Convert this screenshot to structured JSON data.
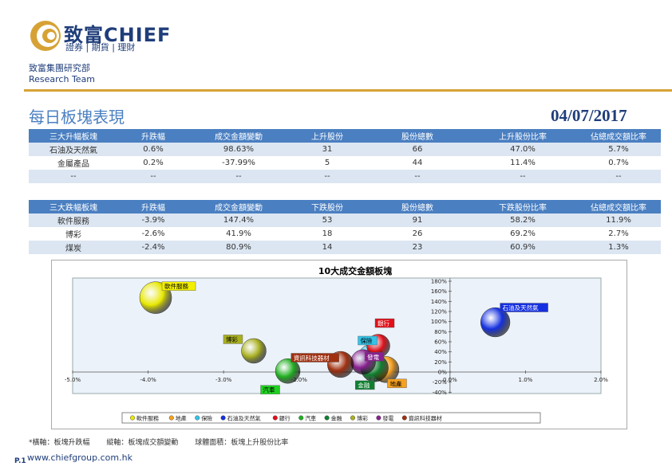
{
  "header": {
    "brand_name": "致富CHIEF",
    "brand_tagline": "證券 | 期貨 | 理財",
    "dept_cn": "致富集團研究部",
    "dept_en": "Research Team"
  },
  "report": {
    "title": "每日板塊表現",
    "date": "04/07/2017"
  },
  "top_gainers": {
    "headers": [
      "三大升幅板塊",
      "升跌幅",
      "成交金額變動",
      "上升股份",
      "股份總數",
      "上升股份比率",
      "佔總成交額比率"
    ],
    "rows": [
      [
        "石油及天然氣",
        "0.6%",
        "98.63%",
        "31",
        "66",
        "47.0%",
        "5.7%"
      ],
      [
        "金屬產品",
        "0.2%",
        "-37.99%",
        "5",
        "44",
        "11.4%",
        "0.7%"
      ],
      [
        "--",
        "--",
        "--",
        "--",
        "--",
        "--",
        "--"
      ]
    ]
  },
  "top_losers": {
    "headers": [
      "三大跌幅板塊",
      "升跌幅",
      "成交金額變動",
      "下跌股份",
      "股份總數",
      "下跌股份比率",
      "佔總成交額比率"
    ],
    "rows": [
      [
        "軟件服務",
        "-3.9%",
        "147.4%",
        "53",
        "91",
        "58.2%",
        "11.9%"
      ],
      [
        "博彩",
        "-2.6%",
        "41.9%",
        "18",
        "26",
        "69.2%",
        "2.7%"
      ],
      [
        "煤炭",
        "-2.4%",
        "80.9%",
        "14",
        "23",
        "60.9%",
        "1.3%"
      ]
    ]
  },
  "chart_data": {
    "type": "scatter",
    "title": "10大成交金額板塊",
    "xlim": [
      -0.05,
      0.02
    ],
    "ylim": [
      -0.4,
      1.8
    ],
    "x_ticks": [
      "-5.0%",
      "-4.0%",
      "-3.0%",
      "-2.0%",
      "-1.0%",
      "0.0%",
      "1.0%",
      "2.0%"
    ],
    "y_ticks": [
      "-40%",
      "-20%",
      "0%",
      "20%",
      "40%",
      "60%",
      "80%",
      "100%",
      "120%",
      "140%",
      "160%",
      "180%"
    ],
    "series": [
      {
        "name": "軟件服務",
        "x": -0.039,
        "y": 1.474,
        "size": 0.582,
        "color": "#e8e800",
        "label_bg": "#f2ef00"
      },
      {
        "name": "地產",
        "x": -0.0085,
        "y": 0.05,
        "size": 0.35,
        "color": "#f5a020",
        "label_bg": "#f5a020"
      },
      {
        "name": "保險",
        "x": -0.0105,
        "y": 0.3,
        "size": 0.3,
        "color": "#33c3e8",
        "label_bg": "#33c3e8"
      },
      {
        "name": "石油及天然氣",
        "x": 0.006,
        "y": 0.9863,
        "size": 0.47,
        "color": "#1530e0",
        "label_bg": "#1530e0"
      },
      {
        "name": "銀行",
        "x": -0.0095,
        "y": 0.52,
        "size": 0.25,
        "color": "#e0101a",
        "label_bg": "#e0101a"
      },
      {
        "name": "汽車",
        "x": -0.0215,
        "y": 0.02,
        "size": 0.3,
        "color": "#20b020",
        "label_bg": "#20d020"
      },
      {
        "name": "金融",
        "x": -0.01,
        "y": 0.08,
        "size": 0.4,
        "color": "#108030",
        "label_bg": "#108030"
      },
      {
        "name": "博彩",
        "x": -0.026,
        "y": 0.419,
        "size": 0.3,
        "color": "#a8b020",
        "label_bg": "#a8b020"
      },
      {
        "name": "發電",
        "x": -0.0115,
        "y": 0.2,
        "size": 0.3,
        "color": "#882090",
        "label_bg": "#882090"
      },
      {
        "name": "資訊科技器材",
        "x": -0.0145,
        "y": 0.15,
        "size": 0.35,
        "color": "#a03010",
        "label_bg": "#a03010"
      }
    ]
  },
  "legend_items": [
    "軟件服務",
    "地產",
    "保險",
    "石油及天然氣",
    "銀行",
    "汽車",
    "金融",
    "博彩",
    "發電",
    "資訊科技器材"
  ],
  "footer": {
    "note": "*橫軸：板塊升跌幅　　 縱軸：板塊成交額變動　　 球體面積：板塊上升股份比率",
    "page": "P.1",
    "url": "www.chiefgroup.com.hk"
  }
}
